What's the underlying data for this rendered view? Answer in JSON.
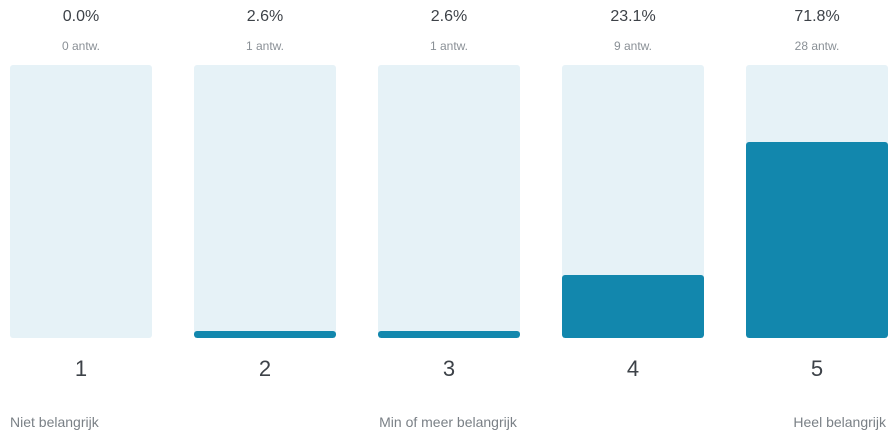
{
  "chart_data": {
    "type": "bar",
    "categories": [
      "1",
      "2",
      "3",
      "4",
      "5"
    ],
    "series": [
      {
        "values": [
          0.0,
          2.6,
          2.6,
          23.1,
          71.8
        ],
        "percent_labels": [
          "0.0%",
          "2.6%",
          "2.6%",
          "23.1%",
          "71.8%"
        ],
        "counts": [
          0,
          1,
          1,
          9,
          28
        ],
        "count_labels": [
          "0 antw.",
          "1 antw.",
          "1 antw.",
          "9 antw.",
          "28 antw."
        ]
      }
    ],
    "ylim": [
      0,
      100
    ],
    "scale_labels": {
      "low": "Niet belangrijk",
      "mid": "Min of meer belangrijk",
      "high": "Heel belangrijk"
    },
    "colors": {
      "bar_fill": "#1287ad",
      "bar_track": "#e6f2f7"
    },
    "grid": false,
    "legend": "none"
  }
}
